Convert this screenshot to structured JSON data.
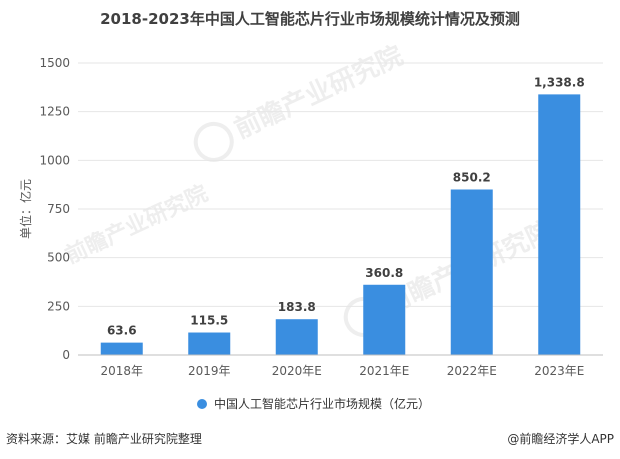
{
  "chart_data": {
    "type": "bar",
    "title": "2018-2023年中国人工智能芯片行业市场规模统计情况及预测",
    "ylabel": "单位：亿元",
    "categories": [
      "2018年",
      "2019年",
      "2020年E",
      "2021年E",
      "2022年E",
      "2023年E"
    ],
    "series": [
      {
        "name": "中国人工智能芯片行业市场规模（亿元）",
        "values": [
          63.6,
          115.5,
          183.8,
          360.8,
          850.2,
          1338.8
        ]
      }
    ],
    "data_labels": [
      "63.6",
      "115.5",
      "183.8",
      "360.8",
      "850.2",
      "1,338.8"
    ],
    "yticks": [
      0,
      250,
      500,
      750,
      1000,
      1250,
      1500
    ],
    "ylim": [
      0,
      1500
    ],
    "grid": true,
    "legend_position": "bottom",
    "bar_color": "#3a8ee0"
  },
  "footer": {
    "source": "资料来源：艾媒 前瞻产业研究院整理",
    "brand": "@前瞻经济学人APP"
  },
  "watermark": "前瞻产业研究院"
}
